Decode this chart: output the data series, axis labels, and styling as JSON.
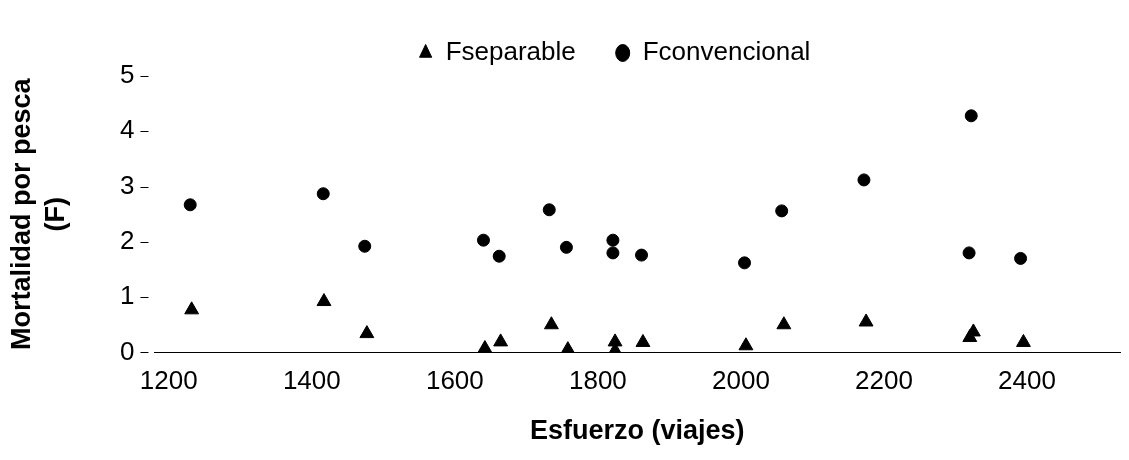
{
  "chart_data": {
    "type": "scatter",
    "xlabel": "Esfuerzo (viajes)",
    "ylabel": "Mortalidad por pesca (F)",
    "xlim": [
      1180,
      2530
    ],
    "xticks": [
      1200,
      1400,
      1600,
      1800,
      2000,
      2200,
      2400
    ],
    "ylim": [
      0,
      5
    ],
    "yticks": [
      0,
      1,
      2,
      3,
      4,
      5
    ],
    "grid": false,
    "legend": "top",
    "series": [
      {
        "name": "Fseparable",
        "color": "#000000",
        "marker": "triangle",
        "x": [
          1232,
          1417,
          1477,
          1642,
          1664,
          1735,
          1758,
          1824,
          1824,
          1863,
          2007,
          2060,
          2175,
          2325,
          2320,
          2395
        ],
        "values": [
          0.77,
          0.92,
          0.34,
          0.07,
          0.19,
          0.5,
          0.05,
          0.19,
          0.03,
          0.18,
          0.12,
          0.5,
          0.55,
          0.37,
          0.27,
          0.18
        ]
      },
      {
        "name": "Fconvencional",
        "color": "#000000",
        "marker": "circle",
        "x": [
          1230,
          1416,
          1474,
          1640,
          1662,
          1732,
          1756,
          1821,
          1821,
          1861,
          2005,
          2057,
          2172,
          2322,
          2319,
          2391
        ],
        "values": [
          2.67,
          2.87,
          1.92,
          2.03,
          1.74,
          2.58,
          1.9,
          2.03,
          1.8,
          1.76,
          1.62,
          2.56,
          3.12,
          4.28,
          1.8,
          1.7
        ]
      }
    ]
  }
}
